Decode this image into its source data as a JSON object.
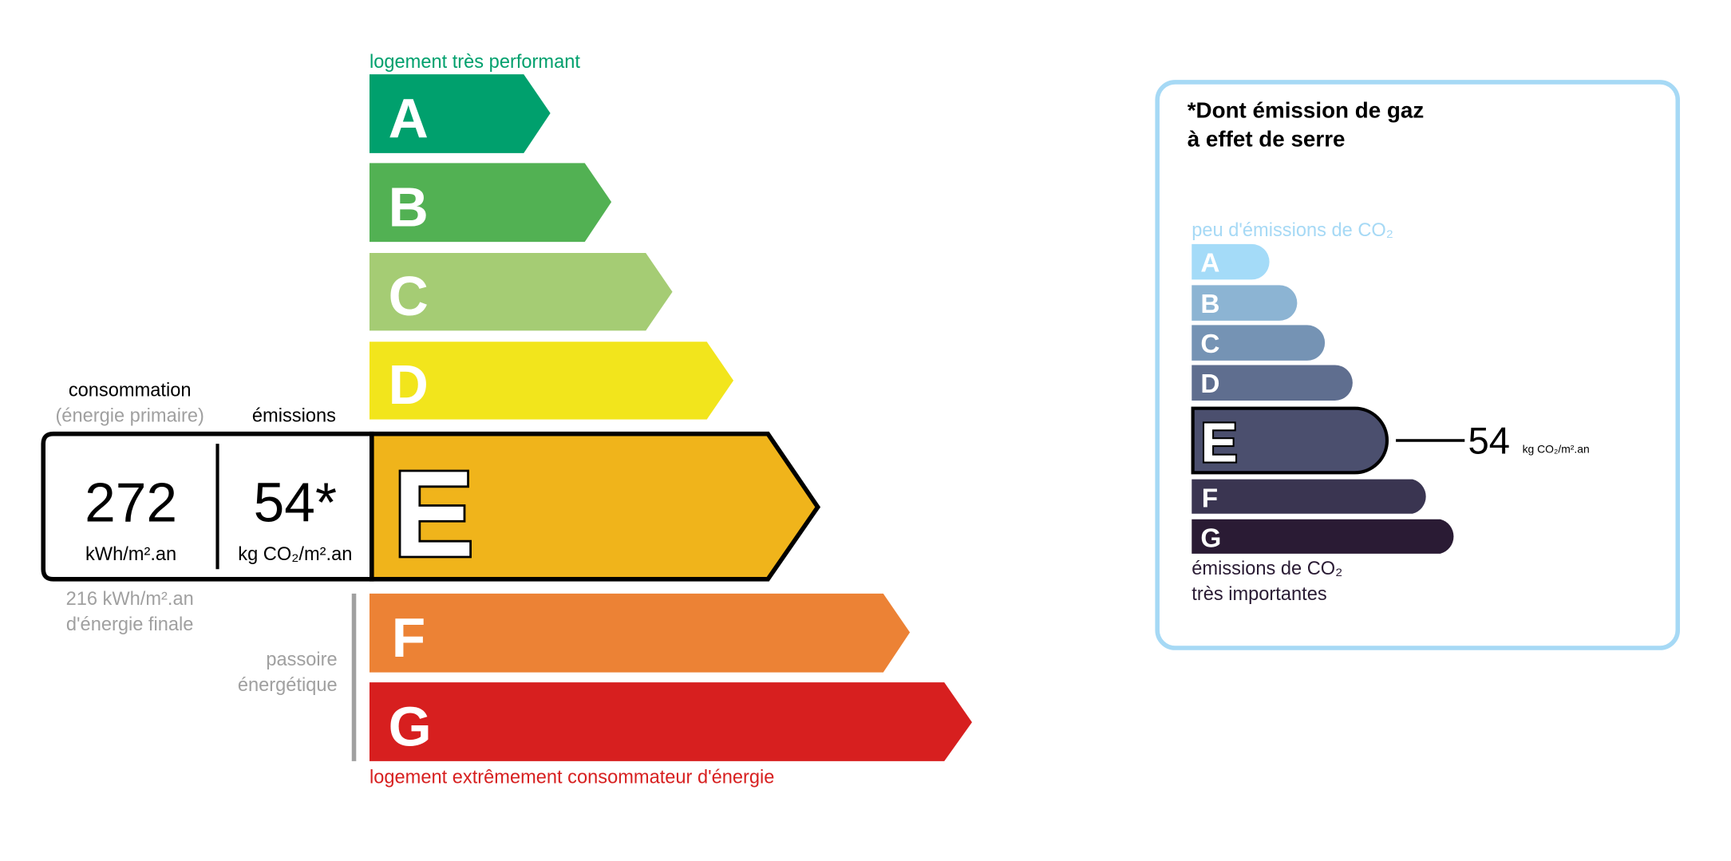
{
  "energy": {
    "top_label": "logement très performant",
    "bottom_label": "logement extrêmement consommateur d'énergie",
    "classes": [
      {
        "letter": "A",
        "color": "#00a06d"
      },
      {
        "letter": "B",
        "color": "#52b153"
      },
      {
        "letter": "C",
        "color": "#a5cc74"
      },
      {
        "letter": "D",
        "color": "#f2e51c"
      },
      {
        "letter": "E",
        "color": "#f0b41b"
      },
      {
        "letter": "F",
        "color": "#ec8235"
      },
      {
        "letter": "G",
        "color": "#d71f1f"
      }
    ],
    "current_class": "E",
    "consumption_label": "consommation",
    "consumption_sub": "(énergie primaire)",
    "emissions_label": "émissions",
    "consumption_value": "272",
    "consumption_unit": "kWh/m².an",
    "emissions_value": "54*",
    "emissions_unit": "kg CO₂/m².an",
    "final_energy_value": "216 kWh/m².an",
    "final_energy_label": "d'énergie finale",
    "passoire_line1": "passoire",
    "passoire_line2": "énergétique"
  },
  "ges": {
    "title_line1": "*Dont émission de gaz",
    "title_line2": "à effet de serre",
    "top_label": "peu d'émissions de CO₂",
    "bottom_line1": "émissions de CO₂",
    "bottom_line2": "très importantes",
    "classes": [
      {
        "letter": "A",
        "color": "#a4dbf8"
      },
      {
        "letter": "B",
        "color": "#8cb4d3"
      },
      {
        "letter": "C",
        "color": "#7593b4"
      },
      {
        "letter": "D",
        "color": "#5f6e8f"
      },
      {
        "letter": "E",
        "color": "#4b4f6e"
      },
      {
        "letter": "F",
        "color": "#3a3551"
      },
      {
        "letter": "G",
        "color": "#2a1b34"
      }
    ],
    "current_class": "E",
    "value": "54",
    "unit": "kg CO₂/m².an",
    "border_color": "#a6d9f5"
  }
}
